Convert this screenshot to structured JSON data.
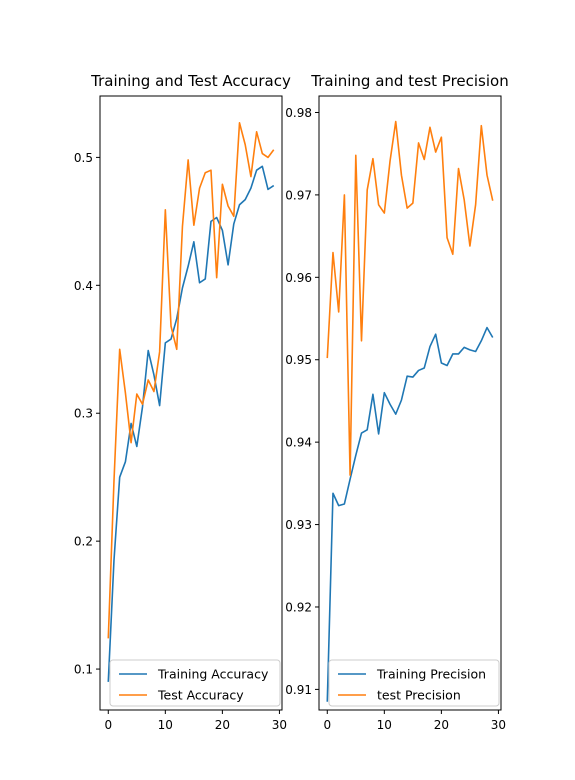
{
  "chart_data": [
    {
      "type": "line",
      "title": "Training and Test Accuracy",
      "xlabel": "",
      "ylabel": "",
      "xlim": [
        -1.45,
        30.45
      ],
      "ylim": [
        0.068,
        0.548
      ],
      "xticks": [
        0,
        10,
        20,
        30
      ],
      "yticks": [
        0.1,
        0.2,
        0.3,
        0.4,
        0.5
      ],
      "grid": false,
      "legend_position": "bottom-right",
      "x": [
        0,
        1,
        2,
        3,
        4,
        5,
        6,
        7,
        8,
        9,
        10,
        11,
        12,
        13,
        14,
        15,
        16,
        17,
        18,
        19,
        20,
        21,
        22,
        23,
        24,
        25,
        26,
        27,
        28,
        29
      ],
      "series": [
        {
          "name": "Training Accuracy",
          "color": "#1f77b4",
          "values": [
            0.09,
            0.185,
            0.25,
            0.262,
            0.292,
            0.274,
            0.305,
            0.349,
            0.33,
            0.306,
            0.355,
            0.358,
            0.374,
            0.398,
            0.415,
            0.434,
            0.402,
            0.405,
            0.45,
            0.453,
            0.443,
            0.416,
            0.448,
            0.463,
            0.467,
            0.476,
            0.49,
            0.493,
            0.475,
            0.478
          ]
        },
        {
          "name": "Test Accuracy",
          "color": "#ff7f0e",
          "values": [
            0.124,
            0.247,
            0.35,
            0.316,
            0.277,
            0.315,
            0.307,
            0.326,
            0.317,
            0.348,
            0.459,
            0.368,
            0.35,
            0.446,
            0.498,
            0.447,
            0.476,
            0.488,
            0.49,
            0.406,
            0.479,
            0.462,
            0.454,
            0.527,
            0.51,
            0.485,
            0.52,
            0.503,
            0.5,
            0.506
          ]
        }
      ]
    },
    {
      "type": "line",
      "title": "Training and test Precision",
      "xlabel": "",
      "ylabel": "",
      "xlim": [
        -1.45,
        30.45
      ],
      "ylim": [
        0.9075,
        0.982
      ],
      "xticks": [
        0,
        10,
        20,
        30
      ],
      "yticks": [
        0.91,
        0.92,
        0.93,
        0.94,
        0.95,
        0.96,
        0.97,
        0.98
      ],
      "grid": false,
      "legend_position": "bottom-right",
      "x": [
        0,
        1,
        2,
        3,
        4,
        5,
        6,
        7,
        8,
        9,
        10,
        11,
        12,
        13,
        14,
        15,
        16,
        17,
        18,
        19,
        20,
        21,
        22,
        23,
        24,
        25,
        26,
        27,
        28,
        29
      ],
      "series": [
        {
          "name": "Training Precision",
          "color": "#1f77b4",
          "values": [
            0.9085,
            0.9338,
            0.9323,
            0.9325,
            0.9355,
            0.9384,
            0.9411,
            0.9415,
            0.9458,
            0.941,
            0.946,
            0.9446,
            0.9434,
            0.9451,
            0.948,
            0.9479,
            0.9487,
            0.949,
            0.9516,
            0.9531,
            0.9496,
            0.9493,
            0.9507,
            0.9507,
            0.9515,
            0.9512,
            0.951,
            0.9523,
            0.9539,
            0.9527
          ]
        },
        {
          "name": "test Precision",
          "color": "#ff7f0e",
          "values": [
            0.9502,
            0.963,
            0.9558,
            0.97,
            0.936,
            0.9748,
            0.9523,
            0.9706,
            0.9744,
            0.9688,
            0.9678,
            0.9741,
            0.9789,
            0.9724,
            0.9684,
            0.969,
            0.9763,
            0.9743,
            0.9782,
            0.9752,
            0.977,
            0.9648,
            0.9628,
            0.9732,
            0.9694,
            0.9638,
            0.9688,
            0.9784,
            0.9724,
            0.9693
          ]
        }
      ]
    }
  ]
}
